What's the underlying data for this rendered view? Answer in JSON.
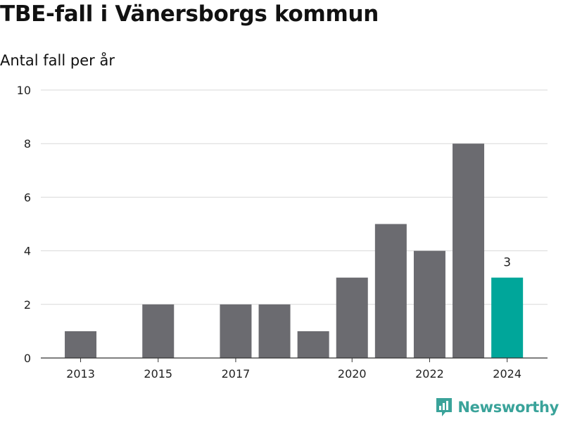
{
  "header": {
    "title": "TBE-fall i Vänersborgs kommun",
    "subtitle": "Antal fall per år"
  },
  "brand": {
    "name": "Newsworthy",
    "color": "#3aa39a",
    "icon": "newsworthy-logo-icon"
  },
  "colors": {
    "bar": "#6b6b70",
    "highlight": "#00a69a",
    "grid": "#d9d9d9",
    "axis": "#333333"
  },
  "chart_data": {
    "type": "bar",
    "title": "TBE-fall i Vänersborgs kommun",
    "subtitle": "Antal fall per år",
    "xlabel": "",
    "ylabel": "",
    "x": [
      2013,
      2014,
      2015,
      2016,
      2017,
      2018,
      2019,
      2020,
      2021,
      2022,
      2023,
      2024
    ],
    "values": [
      1,
      0,
      2,
      0,
      2,
      2,
      1,
      3,
      5,
      4,
      8,
      3
    ],
    "highlight_index": 11,
    "data_labels": [
      {
        "index": 11,
        "text": "3"
      }
    ],
    "ylim": [
      0,
      10
    ],
    "yticks": [
      0,
      2,
      4,
      6,
      8,
      10
    ],
    "xticks": [
      2013,
      2015,
      2017,
      2020,
      2022,
      2024
    ],
    "grid": true,
    "legend": "none"
  }
}
